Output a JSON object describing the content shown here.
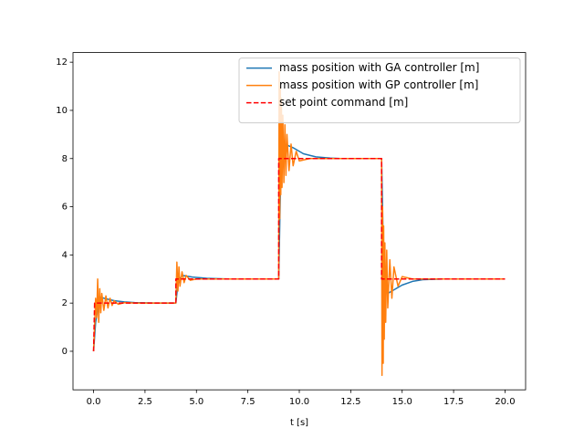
{
  "chart_data": {
    "type": "line",
    "xlabel": "t [s]",
    "xlim": [
      -1.0,
      21.0
    ],
    "ylim": [
      -1.6,
      12.4
    ],
    "xticks": [
      {
        "value": 0,
        "label": "0.0"
      },
      {
        "value": 2.5,
        "label": "2.5"
      },
      {
        "value": 5,
        "label": "5.0"
      },
      {
        "value": 7.5,
        "label": "7.5"
      },
      {
        "value": 10,
        "label": "10.0"
      },
      {
        "value": 12.5,
        "label": "12.5"
      },
      {
        "value": 15,
        "label": "15.0"
      },
      {
        "value": 17.5,
        "label": "17.5"
      },
      {
        "value": 20,
        "label": "20.0"
      }
    ],
    "yticks": [
      0,
      2,
      4,
      6,
      8,
      10,
      12
    ],
    "legend": "upper right",
    "series": [
      {
        "name": "mass position with GA controller [m]",
        "color": "#1f77b4",
        "style": "solid",
        "x": [
          0,
          0.1,
          0.3,
          0.6,
          1,
          1.5,
          2,
          3,
          4,
          4.1,
          4.3,
          4.8,
          5.5,
          6.5,
          9,
          9.1,
          9.3,
          9.7,
          10.2,
          10.8,
          11.5,
          12,
          14,
          14.1,
          14.3,
          14.6,
          15,
          15.5,
          16,
          17,
          20
        ],
        "values": [
          0,
          1.2,
          2.25,
          2.18,
          2.1,
          2.05,
          2.02,
          2,
          2,
          2.8,
          3.15,
          3.08,
          3.03,
          3,
          3,
          7.5,
          8.6,
          8.45,
          8.2,
          8.07,
          8.02,
          8,
          8,
          3.5,
          2.4,
          2.55,
          2.75,
          2.9,
          2.97,
          3,
          3
        ]
      },
      {
        "name": "mass position with GP controller [m]",
        "color": "#ff7f0e",
        "style": "solid",
        "x": [
          0,
          0.05,
          0.1,
          0.15,
          0.2,
          0.25,
          0.3,
          0.35,
          0.4,
          0.5,
          0.6,
          0.7,
          0.8,
          0.9,
          1,
          1.2,
          1.5,
          2,
          4,
          4.05,
          4.1,
          4.15,
          4.2,
          4.3,
          4.4,
          4.5,
          4.7,
          5,
          9,
          9.02,
          9.05,
          9.08,
          9.1,
          9.13,
          9.16,
          9.2,
          9.25,
          9.3,
          9.35,
          9.4,
          9.5,
          9.6,
          9.7,
          9.85,
          10,
          10.5,
          14,
          14.02,
          14.05,
          14.08,
          14.1,
          14.13,
          14.16,
          14.2,
          14.25,
          14.3,
          14.4,
          14.5,
          14.6,
          14.8,
          15,
          15.5,
          20
        ],
        "values": [
          0,
          1,
          2.2,
          1.4,
          3.0,
          1.2,
          2.6,
          1.6,
          2.4,
          1.7,
          2.3,
          1.8,
          2.2,
          1.9,
          2.1,
          1.95,
          2.02,
          2,
          2,
          3.7,
          2.5,
          3.5,
          2.7,
          3.3,
          2.85,
          3.15,
          2.95,
          3,
          3,
          11.6,
          5.5,
          11,
          6.5,
          10.5,
          6.8,
          9.8,
          7,
          9.4,
          7.3,
          9,
          7.5,
          8.6,
          7.7,
          8.3,
          7.9,
          8,
          8,
          -1,
          6,
          -0.5,
          5.2,
          0.5,
          4.5,
          1.2,
          4.2,
          1.8,
          3.8,
          2.2,
          3.5,
          2.7,
          3.1,
          3,
          3
        ]
      },
      {
        "name": "set point command [m]",
        "color": "#ff0000",
        "style": "dashed",
        "x": [
          0,
          0.05,
          4,
          4,
          9,
          9,
          14,
          14,
          20
        ],
        "values": [
          0,
          2,
          2,
          3,
          3,
          8,
          8,
          3,
          3
        ]
      }
    ]
  }
}
